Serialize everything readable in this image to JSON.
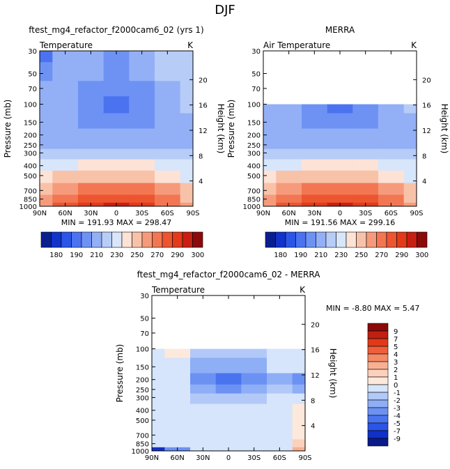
{
  "page_title": "DJF",
  "colors": {
    "main": [
      "#0a1f8f",
      "#1133c9",
      "#2b55e8",
      "#4b73f0",
      "#6e92f4",
      "#93b0f6",
      "#b7cdf8",
      "#d8e6fb",
      "#fde2d6",
      "#f8c2a9",
      "#f59b7b",
      "#f27652",
      "#ec5530",
      "#e33a1a",
      "#c81f12",
      "#8c0a0a"
    ],
    "diff": [
      "#0a1a8a",
      "#1030c8",
      "#2b55e6",
      "#4a74ef",
      "#6b92f3",
      "#8eaef6",
      "#b2c9f8",
      "#d6e5fb",
      "#fde9dc",
      "#fbd1bb",
      "#f8b092",
      "#f58a66",
      "#ee5f3a",
      "#e03a1a",
      "#c01f12",
      "#8a0a0a"
    ]
  },
  "panels": [
    {
      "id": "model",
      "title": "ftest_mg4_refactor_f2000cam6_02 (yrs 1)",
      "left_label": "Temperature",
      "units": "K",
      "xlabel": "",
      "ylabel": "Pressure (mb)",
      "right_label": "Height (km)",
      "min_max_text": "MIN = 191.93   MAX = 298.47"
    },
    {
      "id": "obs",
      "title": "MERRA",
      "left_label": "Air Temperature",
      "units": "K",
      "xlabel": "",
      "ylabel": "Pressure (mb)",
      "right_label": "Height (km)",
      "min_max_text": "MIN = 191.56   MAX = 299.16"
    },
    {
      "id": "diff",
      "title": "ftest_mg4_refactor_f2000cam6_02 - MERRA",
      "left_label": "Temperature",
      "units": "K",
      "xlabel": "",
      "ylabel": "Pressure (mb)",
      "right_label": "Height (km)",
      "min_max_text": "MIN =  -8.80   MAX =   5.47"
    }
  ],
  "axes": {
    "pressure_ticks": [
      "30",
      "50",
      "70",
      "100",
      "150",
      "200",
      "250",
      "300",
      "400",
      "500",
      "700",
      "850",
      "1000"
    ],
    "height_ticks": [
      "20",
      "16",
      "12",
      "8",
      "4"
    ],
    "lat_ticks": [
      "90N",
      "60N",
      "30N",
      "0",
      "30S",
      "60S",
      "90S"
    ]
  },
  "colorbars": {
    "main_labels": [
      "180",
      "190",
      "210",
      "230",
      "250",
      "270",
      "290",
      "300"
    ],
    "diff_labels": [
      "9",
      "7",
      "5",
      "4",
      "3",
      "2",
      "1",
      "0",
      "-1",
      "-2",
      "-3",
      "-4",
      "-5",
      "-7",
      "-9"
    ]
  },
  "chart_data": [
    {
      "type": "heatmap",
      "title": "ftest_mg4_refactor_f2000cam6_02 (yrs 1)",
      "variable": "Temperature",
      "units": "K",
      "x": [
        "90N",
        "60N",
        "30N",
        "0",
        "30S",
        "60S",
        "90S"
      ],
      "y": [
        30,
        50,
        70,
        100,
        150,
        200,
        250,
        300,
        400,
        500,
        700,
        850,
        1000
      ],
      "ylim": [
        1000,
        30
      ],
      "min": 191.93,
      "max": 298.47,
      "levels": [
        180,
        185,
        190,
        200,
        210,
        220,
        230,
        240,
        250,
        260,
        270,
        280,
        290,
        295,
        300
      ],
      "values": [
        [
          198,
          212,
          214,
          208,
          212,
          220,
          226
        ],
        [
          206,
          216,
          212,
          208,
          212,
          220,
          224
        ],
        [
          212,
          216,
          206,
          200,
          206,
          218,
          222
        ],
        [
          212,
          214,
          200,
          196,
          200,
          216,
          220
        ],
        [
          214,
          214,
          206,
          204,
          206,
          216,
          218
        ],
        [
          216,
          216,
          212,
          212,
          212,
          214,
          216
        ],
        [
          218,
          218,
          218,
          218,
          218,
          214,
          216
        ],
        [
          220,
          222,
          224,
          226,
          224,
          220,
          222
        ],
        [
          230,
          236,
          244,
          246,
          244,
          236,
          230
        ],
        [
          240,
          250,
          256,
          258,
          256,
          248,
          238
        ],
        [
          254,
          266,
          274,
          276,
          274,
          262,
          252
        ],
        [
          262,
          276,
          286,
          288,
          284,
          270,
          258
        ],
        [
          264,
          282,
          294,
          298,
          292,
          274,
          260
        ]
      ]
    },
    {
      "type": "heatmap",
      "title": "MERRA",
      "variable": "Air Temperature",
      "units": "K",
      "x": [
        "90N",
        "60N",
        "30N",
        "0",
        "30S",
        "60S",
        "90S"
      ],
      "y": [
        100,
        150,
        200,
        250,
        300,
        400,
        500,
        700,
        850,
        1000
      ],
      "ylim": [
        1000,
        30
      ],
      "min": 191.56,
      "max": 299.16,
      "levels": [
        180,
        185,
        190,
        200,
        210,
        220,
        230,
        240,
        250,
        260,
        270,
        280,
        290,
        295,
        300
      ],
      "values": [
        [
          212,
          214,
          200,
          196,
          200,
          216,
          220
        ],
        [
          214,
          214,
          206,
          204,
          206,
          216,
          218
        ],
        [
          216,
          216,
          212,
          212,
          212,
          214,
          216
        ],
        [
          218,
          218,
          218,
          218,
          218,
          214,
          216
        ],
        [
          220,
          222,
          224,
          226,
          224,
          220,
          222
        ],
        [
          230,
          236,
          244,
          246,
          244,
          236,
          230
        ],
        [
          240,
          250,
          256,
          258,
          256,
          248,
          238
        ],
        [
          254,
          266,
          274,
          276,
          274,
          262,
          252
        ],
        [
          262,
          276,
          286,
          288,
          284,
          270,
          258
        ],
        [
          264,
          282,
          294,
          299,
          292,
          274,
          260
        ]
      ]
    },
    {
      "type": "heatmap",
      "title": "ftest_mg4_refactor_f2000cam6_02 - MERRA",
      "variable": "Temperature",
      "units": "K",
      "x": [
        "90N",
        "60N",
        "30N",
        "0",
        "30S",
        "60S",
        "90S"
      ],
      "y": [
        100,
        150,
        200,
        250,
        300,
        400,
        500,
        700,
        850,
        1000
      ],
      "ylim": [
        1000,
        30
      ],
      "min": -8.8,
      "max": 5.47,
      "levels": [
        -9,
        -7,
        -5,
        -4,
        -3,
        -2,
        -1,
        0,
        1,
        2,
        3,
        4,
        5,
        7,
        9
      ],
      "values": [
        [
          -0.5,
          0.5,
          -1.5,
          -1.5,
          -1.5,
          -0.5,
          -0.5
        ],
        [
          -0.5,
          -1.0,
          -2.5,
          -3.0,
          -2.5,
          -1.0,
          -0.5
        ],
        [
          -0.5,
          -1.0,
          -3.5,
          -4.5,
          -3.5,
          -2.5,
          -3.5
        ],
        [
          -0.5,
          -1.0,
          -3.0,
          -3.5,
          -3.0,
          -2.0,
          -3.0
        ],
        [
          -0.5,
          -0.5,
          -1.5,
          -2.0,
          -1.5,
          -1.0,
          -1.0
        ],
        [
          -0.5,
          -0.5,
          -1.0,
          -1.0,
          -1.0,
          -0.5,
          0.5
        ],
        [
          -0.5,
          -0.5,
          -0.5,
          -0.5,
          -0.5,
          -0.5,
          0.5
        ],
        [
          -0.5,
          -0.5,
          -0.5,
          -0.5,
          -0.5,
          -0.5,
          0.5
        ],
        [
          -0.5,
          -0.5,
          -0.5,
          -0.5,
          -0.5,
          -0.5,
          1.5
        ],
        [
          -8.0,
          -4.0,
          -0.5,
          -0.5,
          -0.5,
          -0.5,
          2.5
        ]
      ]
    }
  ]
}
